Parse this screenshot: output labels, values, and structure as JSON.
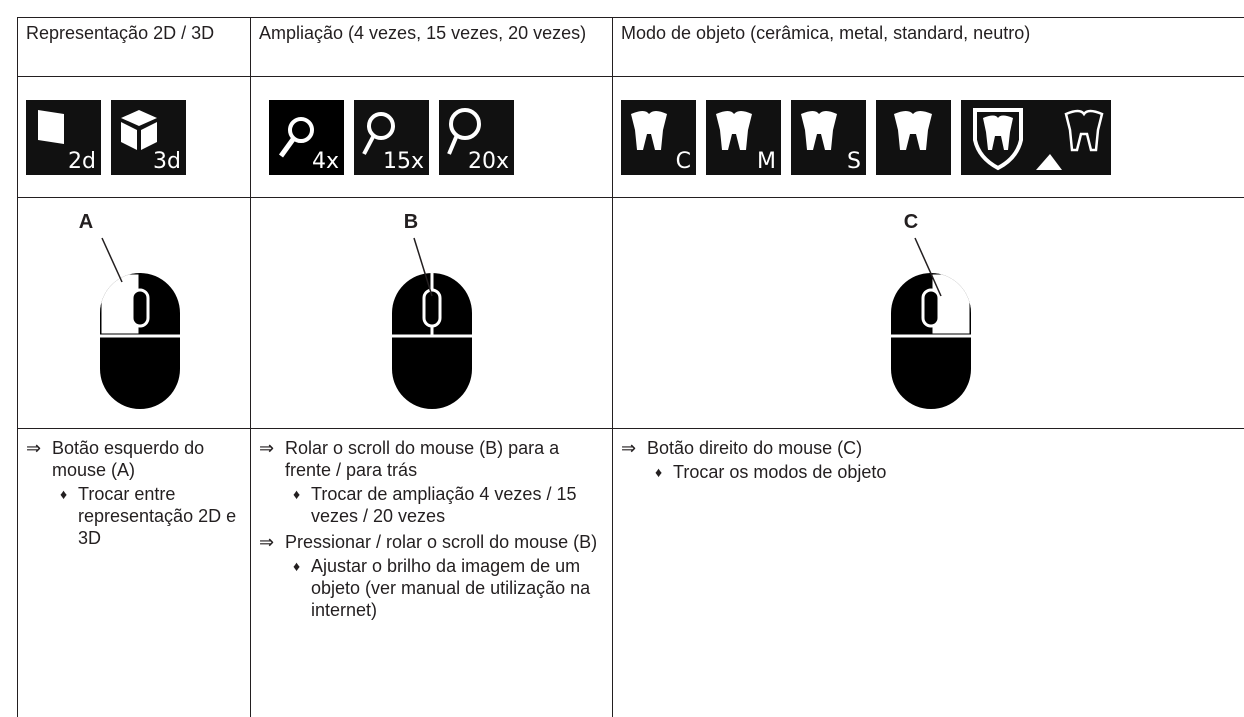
{
  "table": {
    "headers": [
      "Representação 2D / 3D",
      "Ampliação (4 vezes, 15 vezes, 20 vezes)",
      "Modo de objeto (cerâmica, metal, standard, neutro)"
    ],
    "icons": [
      [
        "2d",
        "3d"
      ],
      [
        "4x",
        "15x",
        "20x"
      ],
      [
        "C",
        "M",
        "S"
      ]
    ],
    "callouts": [
      "A",
      "B",
      "C"
    ],
    "instructions": [
      [
        {
          "action": "Botão esquerdo do mouse (A)",
          "results": [
            "Trocar entre representação 2D e 3D"
          ]
        }
      ],
      [
        {
          "action": "Rolar o scroll do mouse (B) para a frente / para trás",
          "results": [
            "Trocar de ampliação 4 vezes / 15 vezes / 20 vezes"
          ]
        },
        {
          "action": "Pressionar / rolar o scroll do mouse (B)",
          "results": [
            "Ajustar o brilho da imagem de um objeto (ver manual de utilização na internet)"
          ]
        }
      ],
      [
        {
          "action": "Botão direito do mouse (C)",
          "results": [
            "Trocar os modos de objeto"
          ]
        }
      ]
    ]
  }
}
